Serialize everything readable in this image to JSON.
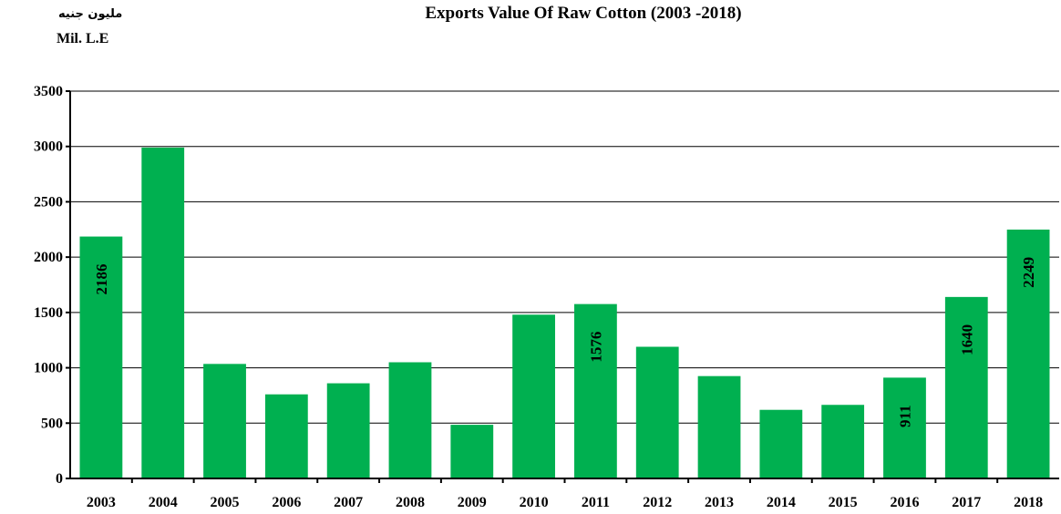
{
  "header": {
    "unit_ar": "مليون جنيه",
    "unit_en": "Mil. L.E",
    "title": "Exports Value Of Raw Cotton (2003 -2018)"
  },
  "chart_data": {
    "type": "bar",
    "title": "Exports Value Of Raw Cotton (2003 -2018)",
    "ylabel": "Mil. L.E",
    "xlabel": "",
    "categories": [
      "2003",
      "2004",
      "2005",
      "2006",
      "2007",
      "2008",
      "2009",
      "2010",
      "2011",
      "2012",
      "2013",
      "2014",
      "2015",
      "2016",
      "2017",
      "2018"
    ],
    "values": [
      2186,
      2990,
      1035,
      760,
      860,
      1050,
      485,
      1480,
      1576,
      1190,
      925,
      620,
      665,
      911,
      1640,
      2249
    ],
    "data_labels": {
      "2003": "2186",
      "2011": "1576",
      "2016": "911",
      "2017": "1640",
      "2018": "2249"
    },
    "ylim": [
      0,
      3500
    ],
    "yticks": [
      0,
      500,
      1000,
      1500,
      2000,
      2500,
      3000,
      3500
    ],
    "grid": true,
    "legend": "none",
    "bar_color": "#00b050"
  }
}
